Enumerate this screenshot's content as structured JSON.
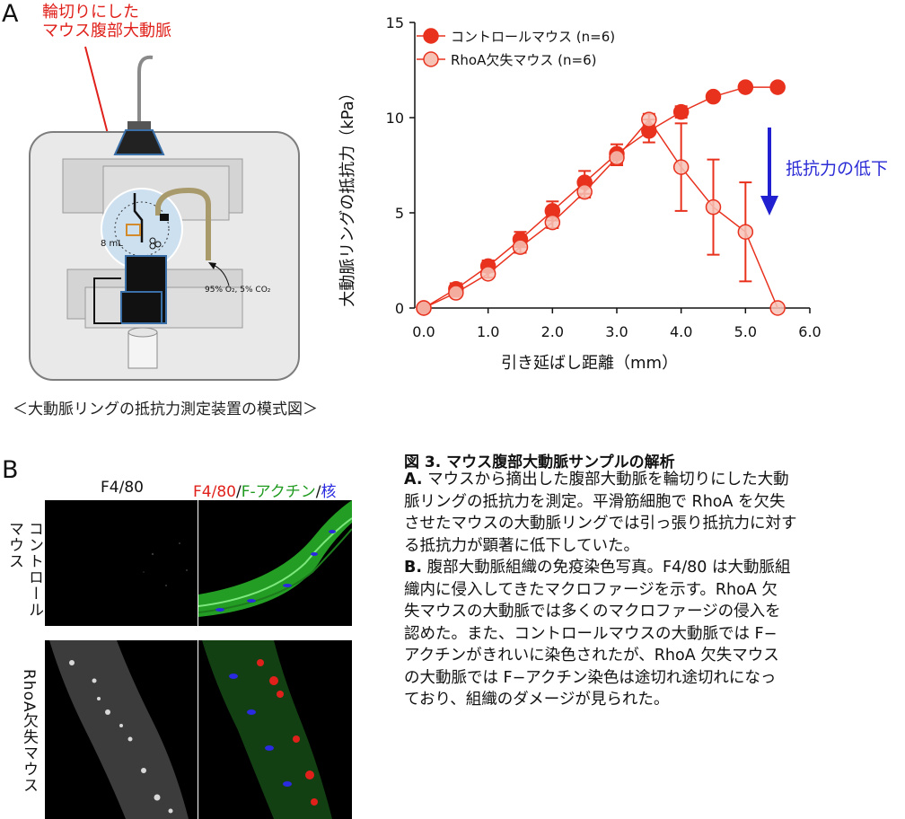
{
  "panel_a": {
    "letter": "A",
    "annotation": [
      "輪切りにした",
      "マウス腹部大動脈"
    ],
    "apparatus_volume": "8 mL",
    "gas_label": "95% O₂, 5% CO₂",
    "apparatus_caption": "＜大動脈リングの抵抗力測定装置の模式図＞"
  },
  "chart_data": {
    "type": "line",
    "xlabel": "引き延ばし距離（mm）",
    "ylabel": "大動脈リングの抵抗力（kPa）",
    "xlim": [
      0,
      6
    ],
    "ylim": [
      0,
      15
    ],
    "x_ticks": [
      "0.0",
      "1.0",
      "2.0",
      "3.0",
      "4.0",
      "5.0",
      "6.0"
    ],
    "y_ticks": [
      "0",
      "5",
      "10",
      "15"
    ],
    "legend_position": "top-left",
    "annotation": "抵抗力の低下",
    "series": [
      {
        "name": "コントロールマウス (n=6)",
        "color": "#e8321e",
        "x": [
          0,
          0.5,
          1.0,
          1.5,
          2.0,
          2.5,
          3.0,
          3.5,
          4.0,
          4.5,
          5.0,
          5.5
        ],
        "values": [
          0,
          1.0,
          2.2,
          3.6,
          5.1,
          6.6,
          8.1,
          9.3,
          10.3,
          11.1,
          11.6,
          11.6
        ],
        "error": [
          0,
          0.3,
          0.3,
          0.4,
          0.5,
          0.6,
          0.5,
          0.6,
          0.3,
          0.2,
          0.2,
          0.2
        ]
      },
      {
        "name": "RhoA欠失マウス (n=6)",
        "color": "#f2a896",
        "x": [
          0,
          0.5,
          1.0,
          1.5,
          2.0,
          2.5,
          3.0,
          3.5,
          4.0,
          4.5,
          5.0,
          5.5
        ],
        "values": [
          0,
          0.8,
          1.8,
          3.2,
          4.5,
          6.1,
          7.9,
          9.9,
          7.4,
          5.3,
          4.0,
          0
        ],
        "error": [
          0,
          0.2,
          0.2,
          0.3,
          0.3,
          0.3,
          0.4,
          0.3,
          2.3,
          2.5,
          2.6,
          0
        ]
      }
    ]
  },
  "panel_b": {
    "letter": "B",
    "col1": "F4/80",
    "col2": {
      "part1": "F4/80",
      "part2": "/",
      "part3": "F-アクチン",
      "part4": "/",
      "part5": "核"
    },
    "row1_label": [
      "コントロール",
      "マウス"
    ],
    "row2_label": "RhoA欠失マウス",
    "colors": {
      "red": "#e0211b",
      "green": "#1f9a1f",
      "blue": "#2a2ae0"
    }
  },
  "caption": {
    "title": "図 3. マウス腹部大動脈サンプルの解析",
    "a_label": "A.",
    "a_lines": [
      " マウスから摘出した腹部大動脈を輪切りにした大動",
      "脈リングの抵抗力を測定。平滑筋細胞で RhoA を欠失",
      "させたマウスの大動脈リングでは引っ張り抵抗力に対す",
      "る抵抗力が顕著に低下していた。"
    ],
    "b_label": "B.",
    "b_lines": [
      " 腹部大動脈組織の免疫染色写真。F4/80 は大動脈組",
      "織内に侵入してきたマクロファージを示す。RhoA 欠",
      "失マウスの大動脈では多くのマクロファージの侵入を",
      "認めた。また、コントロールマウスの大動脈では F−",
      "アクチンがきれいに染色されたが、RhoA 欠失マウス",
      "の大動脈では F−アクチン染色は途切れ途切れになっ",
      "ており、組織のダメージが見られた。"
    ]
  }
}
